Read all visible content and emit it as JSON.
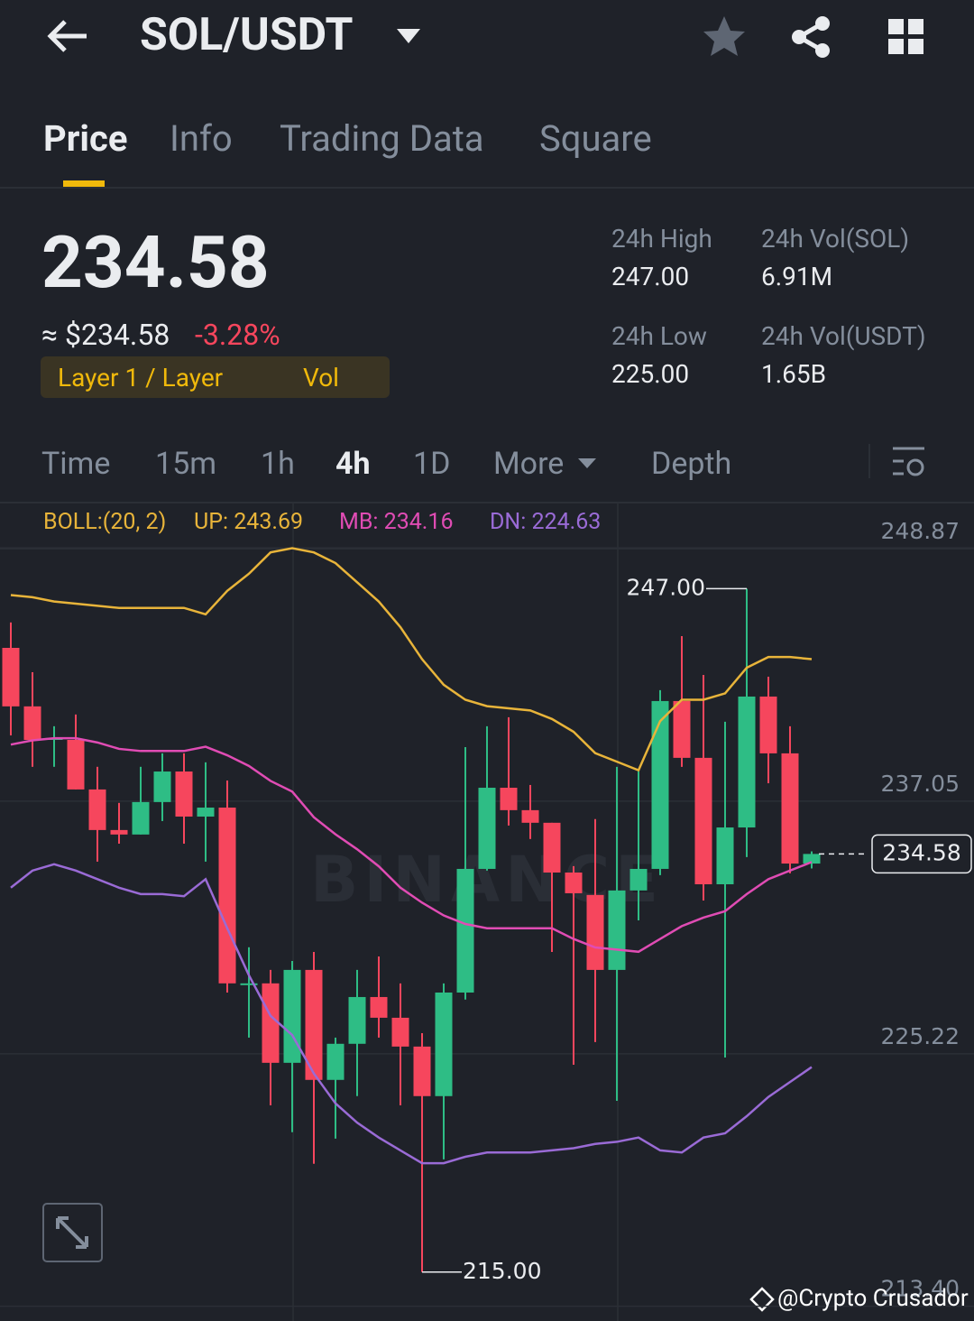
{
  "header": {
    "title": "SOL/USDT"
  },
  "tabs": [
    "Price",
    "Info",
    "Trading Data",
    "Square"
  ],
  "price": {
    "last": "234.58",
    "fiat": "≈ $234.58",
    "change": "-3.28%",
    "tag": "Layer 1 / Layer",
    "tag_link": "Vol"
  },
  "stats": [
    {
      "label": "24h High",
      "value": "247.00"
    },
    {
      "label": "24h Vol(SOL)",
      "value": "6.91M"
    },
    {
      "label": "24h Low",
      "value": "225.00"
    },
    {
      "label": "24h Vol(USDT)",
      "value": "1.65B"
    }
  ],
  "intervals": [
    "Time",
    "15m",
    "1h",
    "4h",
    "1D",
    "More",
    "Depth"
  ],
  "watermark": "@Crypto Crusador",
  "chart_data": {
    "type": "candlestick",
    "indicator": "BOLL:(20, 2)",
    "watermark": "BINANCE",
    "up_color": "#2ebd85",
    "down_color": "#f6465d",
    "ylim": [
      212.71,
      250.99
    ],
    "yticks": [
      248.87,
      237.05,
      225.22,
      {
        "value": 213.4,
        "label": "213.40"
      }
    ],
    "grid": true,
    "candles": {
      "open": [
        244.23,
        241.49,
        239.92,
        239.92,
        237.6,
        235.7,
        235.49,
        237.01,
        238.44,
        236.33,
        236.75,
        228.52,
        228.52,
        224.8,
        229.15,
        224.0,
        225.69,
        227.88,
        226.91,
        225.56,
        223.24,
        228.09,
        233.88,
        237.68,
        236.63,
        236.04,
        233.71,
        232.66,
        229.15,
        232.87,
        233.88,
        241.74,
        239.08,
        233.16,
        235.82,
        241.95,
        239.29,
        234.13
      ],
      "high": [
        245.42,
        243.09,
        240.56,
        241.11,
        238.66,
        236.97,
        238.66,
        239.29,
        239.29,
        238.87,
        238.02,
        230.21,
        229.15,
        229.57,
        229.99,
        225.98,
        229.15,
        229.78,
        228.52,
        226.19,
        228.52,
        239.58,
        240.56,
        240.98,
        237.81,
        236.04,
        234.01,
        236.21,
        238.66,
        238.44,
        242.25,
        244.78,
        242.96,
        240.77,
        247.0,
        242.88,
        240.56,
        234.7
      ],
      "low": [
        240.13,
        238.66,
        238.66,
        237.6,
        234.22,
        235.06,
        235.49,
        236.12,
        235.06,
        234.22,
        228.09,
        225.98,
        222.81,
        221.55,
        220.07,
        221.25,
        223.24,
        225.98,
        222.81,
        215.0,
        220.28,
        227.76,
        233.8,
        235.91,
        235.28,
        229.99,
        224.71,
        225.77,
        223.02,
        231.47,
        233.59,
        238.66,
        232.4,
        225.05,
        234.43,
        237.89,
        233.67,
        233.9
      ],
      "close": [
        241.49,
        239.92,
        240.01,
        237.6,
        235.7,
        235.49,
        237.01,
        238.44,
        236.33,
        236.75,
        228.52,
        228.52,
        224.8,
        229.15,
        224.0,
        225.69,
        227.88,
        226.91,
        225.56,
        223.24,
        228.09,
        233.88,
        237.68,
        236.63,
        236.04,
        233.71,
        232.74,
        229.15,
        232.87,
        233.88,
        241.74,
        239.08,
        233.16,
        235.82,
        241.95,
        239.29,
        234.13,
        234.58
      ]
    },
    "bands": [
      {
        "name": "UP: 243.69",
        "color": "#e8b43a",
        "values": [
          246.7,
          246.6,
          246.4,
          246.3,
          246.2,
          246.1,
          246.1,
          246.1,
          246.1,
          245.8,
          246.9,
          247.7,
          248.7,
          248.9,
          248.7,
          248.2,
          247.3,
          246.4,
          245.2,
          243.7,
          242.5,
          241.8,
          241.5,
          241.4,
          241.3,
          240.9,
          240.3,
          239.3,
          238.9,
          238.5,
          240.8,
          241.8,
          241.8,
          242.1,
          243.3,
          243.8,
          243.8,
          243.7
        ]
      },
      {
        "name": "MB: 234.16",
        "color": "#e04cb4",
        "values": [
          239.7,
          239.9,
          240.0,
          240.0,
          239.8,
          239.5,
          239.4,
          239.4,
          239.4,
          239.6,
          239.2,
          238.7,
          238.0,
          237.5,
          236.3,
          235.5,
          234.8,
          234.0,
          233.0,
          232.3,
          231.7,
          231.3,
          231.1,
          231.1,
          231.1,
          231.1,
          230.6,
          230.2,
          230.1,
          230.0,
          230.6,
          231.2,
          231.6,
          231.9,
          232.7,
          233.4,
          233.8,
          234.2
        ]
      },
      {
        "name": "DN: 224.63",
        "color": "#9a6bd6",
        "values": [
          233.0,
          233.8,
          234.1,
          233.8,
          233.4,
          233.0,
          232.7,
          232.7,
          232.6,
          233.4,
          231.1,
          228.9,
          227.0,
          226.1,
          224.3,
          222.9,
          222.0,
          221.3,
          220.7,
          220.1,
          220.1,
          220.4,
          220.6,
          220.6,
          220.6,
          220.7,
          220.8,
          221.0,
          221.1,
          221.3,
          220.7,
          220.6,
          221.3,
          221.5,
          222.3,
          223.2,
          223.9,
          224.6
        ]
      }
    ],
    "high_label": {
      "value": 247,
      "label": "247.00"
    },
    "low_label": {
      "value": 215,
      "label": "215.00"
    },
    "last_price": 234.58
  }
}
